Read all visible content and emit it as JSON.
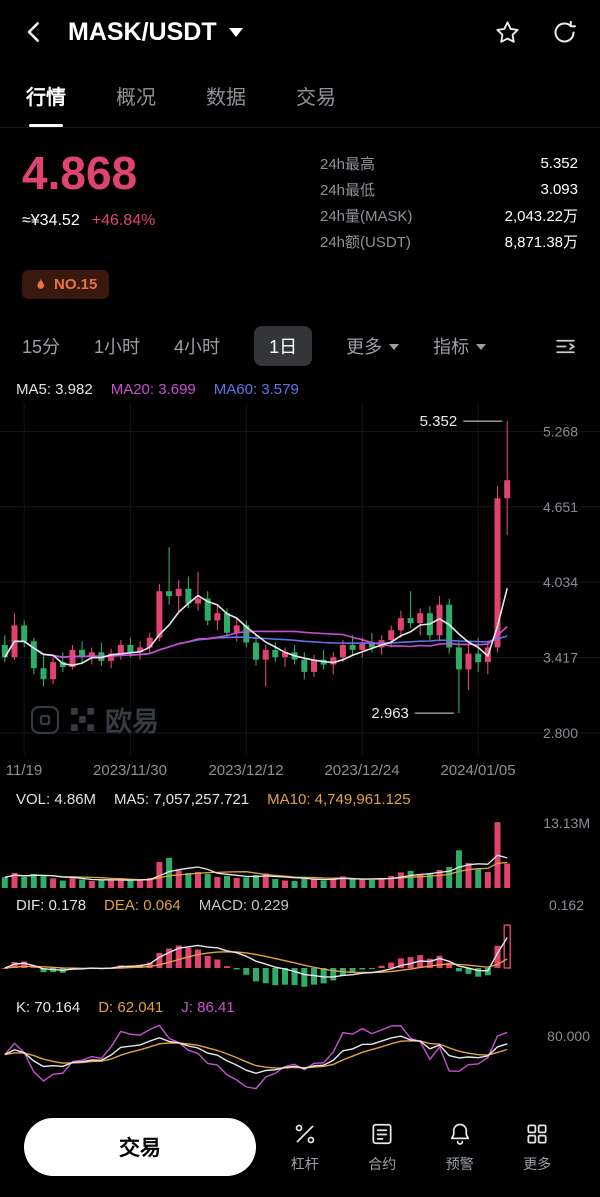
{
  "header": {
    "title": "MASK/USDT"
  },
  "tabs": [
    {
      "label": "行情",
      "active": true
    },
    {
      "label": "概况",
      "active": false
    },
    {
      "label": "数据",
      "active": false
    },
    {
      "label": "交易",
      "active": false
    }
  ],
  "price": {
    "value": "4.868",
    "fiat": "≈¥34.52",
    "change": "+46.84%"
  },
  "stats": [
    {
      "label": "24h最高",
      "value": "5.352"
    },
    {
      "label": "24h最低",
      "value": "3.093"
    },
    {
      "label": "24h量(MASK)",
      "value": "2,043.22万"
    },
    {
      "label": "24h额(USDT)",
      "value": "8,871.38万"
    }
  ],
  "badge": {
    "label": "NO.15"
  },
  "timeframes": [
    {
      "label": "15分",
      "active": false
    },
    {
      "label": "1小时",
      "active": false
    },
    {
      "label": "4小时",
      "active": false
    },
    {
      "label": "1日",
      "active": true
    },
    {
      "label": "更多",
      "active": false
    },
    {
      "label": "指标",
      "active": false
    }
  ],
  "ma_legend": [
    "MA5: 3.982",
    "MA20: 3.699",
    "MA60: 3.579"
  ],
  "vol_legend": [
    "VOL: 4.86M",
    "MA5: 7,057,257.721",
    "MA10: 4,749,961.125"
  ],
  "macd_legend": [
    "DIF: 0.178",
    "DEA: 0.064",
    "MACD: 0.229"
  ],
  "kdj_legend": [
    "K: 70.164",
    "D: 62.041",
    "J: 86.41"
  ],
  "watermark": {
    "label": "欧易"
  },
  "bottom_bar": {
    "trade_label": "交易",
    "actions": [
      {
        "label": "杠杆",
        "icon": "leverage-icon"
      },
      {
        "label": "合约",
        "icon": "contract-icon"
      },
      {
        "label": "预警",
        "icon": "alert-bell-icon"
      },
      {
        "label": "更多",
        "icon": "more-grid-icon"
      }
    ]
  },
  "chart_data": {
    "type": "candlestick",
    "title": "MASK/USDT 1日 K线",
    "colors": {
      "up": "#e0446e",
      "down": "#2eac68",
      "ma5": "#e6e8ec",
      "ma20": "#c94fd0",
      "ma60": "#6273ea",
      "yellow": "#e2a23c",
      "purple": "#c94fd0"
    },
    "main": {
      "domain": [
        2.62,
        5.5
      ],
      "axis_labels": [
        "5.268",
        "4.651",
        "4.034",
        "3.417",
        "2.800"
      ],
      "x_labels": [
        "11/19",
        "2023/11/30",
        "2023/12/12",
        "2023/12/24",
        "2024/01/05"
      ],
      "tick_indices": [
        2,
        13,
        25,
        37,
        49
      ],
      "high_label": "5.352",
      "low_label": "2.963",
      "ma_values": {
        "MA5": 3.982,
        "MA20": 3.699,
        "MA60": 3.579
      }
    },
    "volume": {
      "axis_label": "13.13M",
      "current": "4.86M",
      "ma5": "7,057,257.721",
      "ma10": "4,749,961.125"
    },
    "macd": {
      "axis_label": "0.162",
      "dif": 0.178,
      "dea": 0.064,
      "macd": 0.229
    },
    "kdj": {
      "axis_label": "80.000",
      "k": 70.164,
      "d": 62.041,
      "j": 86.41
    },
    "candles_format": "open,high,low,close,volume(M) — estimated from pixels",
    "candles": [
      [
        3.52,
        3.6,
        3.38,
        3.42,
        2.1
      ],
      [
        3.42,
        3.78,
        3.4,
        3.68,
        3.0
      ],
      [
        3.68,
        3.72,
        3.5,
        3.55,
        2.2
      ],
      [
        3.55,
        3.58,
        3.28,
        3.33,
        2.8
      ],
      [
        3.33,
        3.45,
        3.18,
        3.24,
        2.4
      ],
      [
        3.24,
        3.42,
        3.2,
        3.38,
        1.9
      ],
      [
        3.38,
        3.46,
        3.3,
        3.34,
        1.5
      ],
      [
        3.34,
        3.52,
        3.32,
        3.48,
        2.0
      ],
      [
        3.48,
        3.55,
        3.38,
        3.42,
        1.7
      ],
      [
        3.42,
        3.5,
        3.36,
        3.46,
        1.4
      ],
      [
        3.46,
        3.54,
        3.35,
        3.39,
        1.6
      ],
      [
        3.39,
        3.49,
        3.33,
        3.45,
        1.5
      ],
      [
        3.45,
        3.56,
        3.4,
        3.52,
        1.8
      ],
      [
        3.52,
        3.58,
        3.42,
        3.46,
        1.6
      ],
      [
        3.46,
        3.55,
        3.4,
        3.5,
        1.5
      ],
      [
        3.5,
        3.62,
        3.45,
        3.58,
        2.0
      ],
      [
        3.58,
        4.02,
        3.55,
        3.96,
        5.2
      ],
      [
        3.96,
        4.32,
        3.85,
        3.92,
        6.0
      ],
      [
        3.92,
        4.05,
        3.78,
        3.98,
        3.5
      ],
      [
        3.98,
        4.08,
        3.82,
        3.86,
        3.0
      ],
      [
        3.86,
        4.12,
        3.8,
        3.9,
        3.2
      ],
      [
        3.9,
        3.96,
        3.68,
        3.72,
        2.8
      ],
      [
        3.72,
        3.84,
        3.64,
        3.78,
        2.2
      ],
      [
        3.78,
        3.82,
        3.58,
        3.62,
        2.4
      ],
      [
        3.62,
        3.74,
        3.55,
        3.68,
        2.0
      ],
      [
        3.68,
        3.72,
        3.5,
        3.54,
        2.1
      ],
      [
        3.54,
        3.6,
        3.35,
        3.4,
        2.6
      ],
      [
        3.4,
        3.52,
        3.18,
        3.48,
        2.9
      ],
      [
        3.48,
        3.54,
        3.38,
        3.42,
        1.8
      ],
      [
        3.42,
        3.5,
        3.34,
        3.46,
        1.5
      ],
      [
        3.46,
        3.52,
        3.36,
        3.4,
        1.4
      ],
      [
        3.4,
        3.46,
        3.24,
        3.3,
        2.2
      ],
      [
        3.3,
        3.44,
        3.26,
        3.4,
        1.9
      ],
      [
        3.4,
        3.48,
        3.32,
        3.36,
        1.5
      ],
      [
        3.36,
        3.46,
        3.28,
        3.42,
        1.7
      ],
      [
        3.42,
        3.56,
        3.38,
        3.52,
        2.3
      ],
      [
        3.52,
        3.6,
        3.44,
        3.48,
        1.8
      ],
      [
        3.48,
        3.58,
        3.42,
        3.54,
        1.7
      ],
      [
        3.54,
        3.62,
        3.46,
        3.5,
        1.6
      ],
      [
        3.5,
        3.6,
        3.44,
        3.56,
        1.9
      ],
      [
        3.56,
        3.68,
        3.5,
        3.64,
        2.4
      ],
      [
        3.64,
        3.8,
        3.58,
        3.74,
        3.1
      ],
      [
        3.74,
        3.96,
        3.66,
        3.7,
        3.4
      ],
      [
        3.7,
        3.82,
        3.6,
        3.78,
        2.6
      ],
      [
        3.78,
        3.84,
        3.56,
        3.6,
        2.8
      ],
      [
        3.6,
        3.92,
        3.55,
        3.85,
        3.6
      ],
      [
        3.85,
        3.9,
        3.45,
        3.5,
        4.2
      ],
      [
        3.5,
        3.56,
        2.963,
        3.32,
        7.5
      ],
      [
        3.32,
        3.52,
        3.15,
        3.45,
        5.0
      ],
      [
        3.45,
        3.58,
        3.3,
        3.38,
        3.8
      ],
      [
        3.38,
        3.55,
        3.28,
        3.5,
        3.2
      ],
      [
        3.5,
        4.82,
        3.46,
        4.72,
        13.1
      ],
      [
        4.72,
        5.352,
        4.42,
        4.868,
        4.86
      ]
    ]
  }
}
